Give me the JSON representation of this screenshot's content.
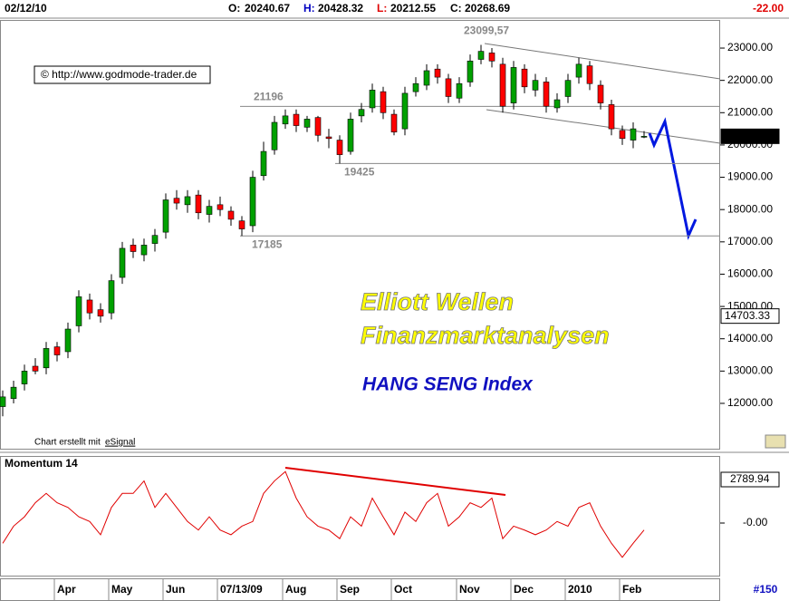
{
  "header": {
    "date": "02/12/10",
    "quote": [
      {
        "label": "O:",
        "value": 20240.67
      },
      {
        "label": "H:",
        "value": 20428.32
      },
      {
        "label": "L:",
        "value": 20212.55
      },
      {
        "label": "C:",
        "value": 20268.69
      }
    ],
    "change": "-22.00"
  },
  "chart_data": [
    {
      "type": "candlestick",
      "categories": [
        null,
        null,
        null,
        null,
        null,
        "Apr",
        null,
        null,
        null,
        null,
        "May",
        null,
        null,
        null,
        null,
        "Jun",
        null,
        null,
        null,
        null,
        "07/13/09",
        null,
        null,
        null,
        null,
        null,
        "Aug",
        null,
        null,
        null,
        null,
        "Sep",
        null,
        null,
        null,
        null,
        "Oct",
        null,
        null,
        null,
        null,
        null,
        "Nov",
        null,
        null,
        null,
        null,
        "Dec",
        null,
        null,
        null,
        null,
        "2010",
        null,
        null,
        null,
        null,
        "Feb",
        null,
        null
      ],
      "open": [
        11900,
        12150,
        12600,
        13150,
        13100,
        13750,
        13600,
        14400,
        15200,
        14900,
        14800,
        15900,
        16900,
        16600,
        16950,
        17300,
        18350,
        18150,
        18450,
        17850,
        18150,
        17950,
        17650,
        17500,
        19050,
        19850,
        20650,
        20950,
        20550,
        20850,
        20250,
        20150,
        19800,
        20900,
        21150,
        21650,
        20950,
        20500,
        21650,
        21850,
        22350,
        22050,
        21450,
        21950,
        22650,
        22850,
        22500,
        21300,
        22350,
        21700,
        21950,
        21150,
        21500,
        22100,
        22450,
        21850,
        21250,
        20450,
        20150,
        20240.67
      ],
      "high": [
        12400,
        12700,
        13200,
        13400,
        13900,
        13900,
        14500,
        15500,
        15400,
        15100,
        16000,
        17000,
        17100,
        17100,
        17400,
        18500,
        18600,
        18600,
        18600,
        18300,
        18400,
        18100,
        17800,
        19200,
        20100,
        20900,
        21100,
        21100,
        20900,
        20900,
        20500,
        20300,
        21000,
        21300,
        21900,
        21800,
        21100,
        21800,
        22100,
        22500,
        22500,
        22200,
        22100,
        22800,
        23099.57,
        23000,
        22700,
        22600,
        22500,
        22200,
        22100,
        21600,
        22200,
        22700,
        22600,
        22000,
        21400,
        20600,
        20700,
        20428.32
      ],
      "low": [
        11600,
        12000,
        12400,
        12900,
        12900,
        13300,
        13400,
        14200,
        14600,
        14500,
        14600,
        15700,
        16500,
        16400,
        16700,
        17100,
        18000,
        17900,
        17700,
        17600,
        17800,
        17500,
        17185,
        17300,
        18900,
        19700,
        20500,
        20400,
        20400,
        20100,
        19900,
        19425,
        19700,
        20700,
        21000,
        20800,
        20300,
        20300,
        21500,
        21700,
        21900,
        21300,
        21300,
        21800,
        22500,
        22400,
        21000,
        21100,
        21600,
        21500,
        21000,
        21000,
        21300,
        21900,
        21700,
        21100,
        20300,
        20000,
        19900,
        20212.55
      ],
      "close": [
        12200,
        12500,
        13000,
        13000,
        13700,
        13500,
        14300,
        15300,
        14800,
        14700,
        15800,
        16800,
        16700,
        16900,
        17200,
        18300,
        18200,
        18400,
        17900,
        18100,
        18000,
        17700,
        17400,
        19000,
        19800,
        20700,
        20900,
        20600,
        20800,
        20300,
        20200,
        19700,
        20800,
        21100,
        21700,
        21000,
        20400,
        21600,
        21900,
        22300,
        22100,
        21500,
        21900,
        22600,
        22900,
        22600,
        21200,
        22400,
        21800,
        22000,
        21200,
        21400,
        22000,
        22500,
        21900,
        21300,
        20500,
        20200,
        20500,
        20268.69
      ],
      "up_color": "#00a000",
      "down_color": "#ff0000",
      "ylim": [
        10596,
        23871
      ],
      "yticks": [
        {
          "value": 12000,
          "label": "12000.00"
        },
        {
          "value": 13000,
          "label": "13000.00"
        },
        {
          "value": 14000,
          "label": "14000.00"
        },
        {
          "value": 15000,
          "label": "15000.00"
        },
        {
          "value": 16000,
          "label": "16000.00"
        },
        {
          "value": 17000,
          "label": "17000.00"
        },
        {
          "value": 18000,
          "label": "18000.00"
        },
        {
          "value": 19000,
          "label": "19000.00"
        },
        {
          "value": 20000,
          "label": "20000.00"
        },
        {
          "value": 21000,
          "label": "21000.00"
        },
        {
          "value": 22000,
          "label": "22000.00"
        },
        {
          "value": 23000,
          "label": "23000.00"
        }
      ],
      "price_markers": [
        {
          "value": 20268.69,
          "label": "20268.69"
        },
        {
          "value": 14703.33,
          "label": "14703.33"
        }
      ],
      "levels": [
        {
          "value": 23099.57,
          "label": "23099,57"
        },
        21196,
        19425,
        17185
      ],
      "headline": [
        "Elliott Wellen",
        "Finanzmarktanalysen"
      ],
      "subtitle": "HANG SENG Index",
      "watermark": "© http://www.godmode-trader.de",
      "credit": [
        "Chart erstellt mit ",
        "eSignal"
      ]
    },
    {
      "type": "line",
      "title": "Momentum 14",
      "color": "#e00000",
      "values": [
        -1300,
        -200,
        400,
        1300,
        1900,
        1300,
        1000,
        400,
        100,
        -750,
        1000,
        1900,
        1900,
        2700,
        1000,
        1900,
        1000,
        100,
        -450,
        400,
        -450,
        -750,
        -200,
        100,
        1900,
        2700,
        3300,
        1600,
        400,
        -200,
        -450,
        -1000,
        400,
        -200,
        1600,
        400,
        -750,
        700,
        100,
        1300,
        1900,
        -200,
        400,
        1300,
        1000,
        1600,
        -1000,
        -200,
        -450,
        -750,
        -450,
        100,
        -200,
        1000,
        1300,
        -200,
        -1300,
        -2200,
        -1300,
        -450
      ],
      "ylim": [
        -3372,
        4185
      ],
      "yticks": [
        {
          "value": 0,
          "label": "-0.00"
        }
      ],
      "markers": [
        {
          "value": 2789.94,
          "label": "2789.94"
        }
      ]
    }
  ],
  "footer": "#150"
}
